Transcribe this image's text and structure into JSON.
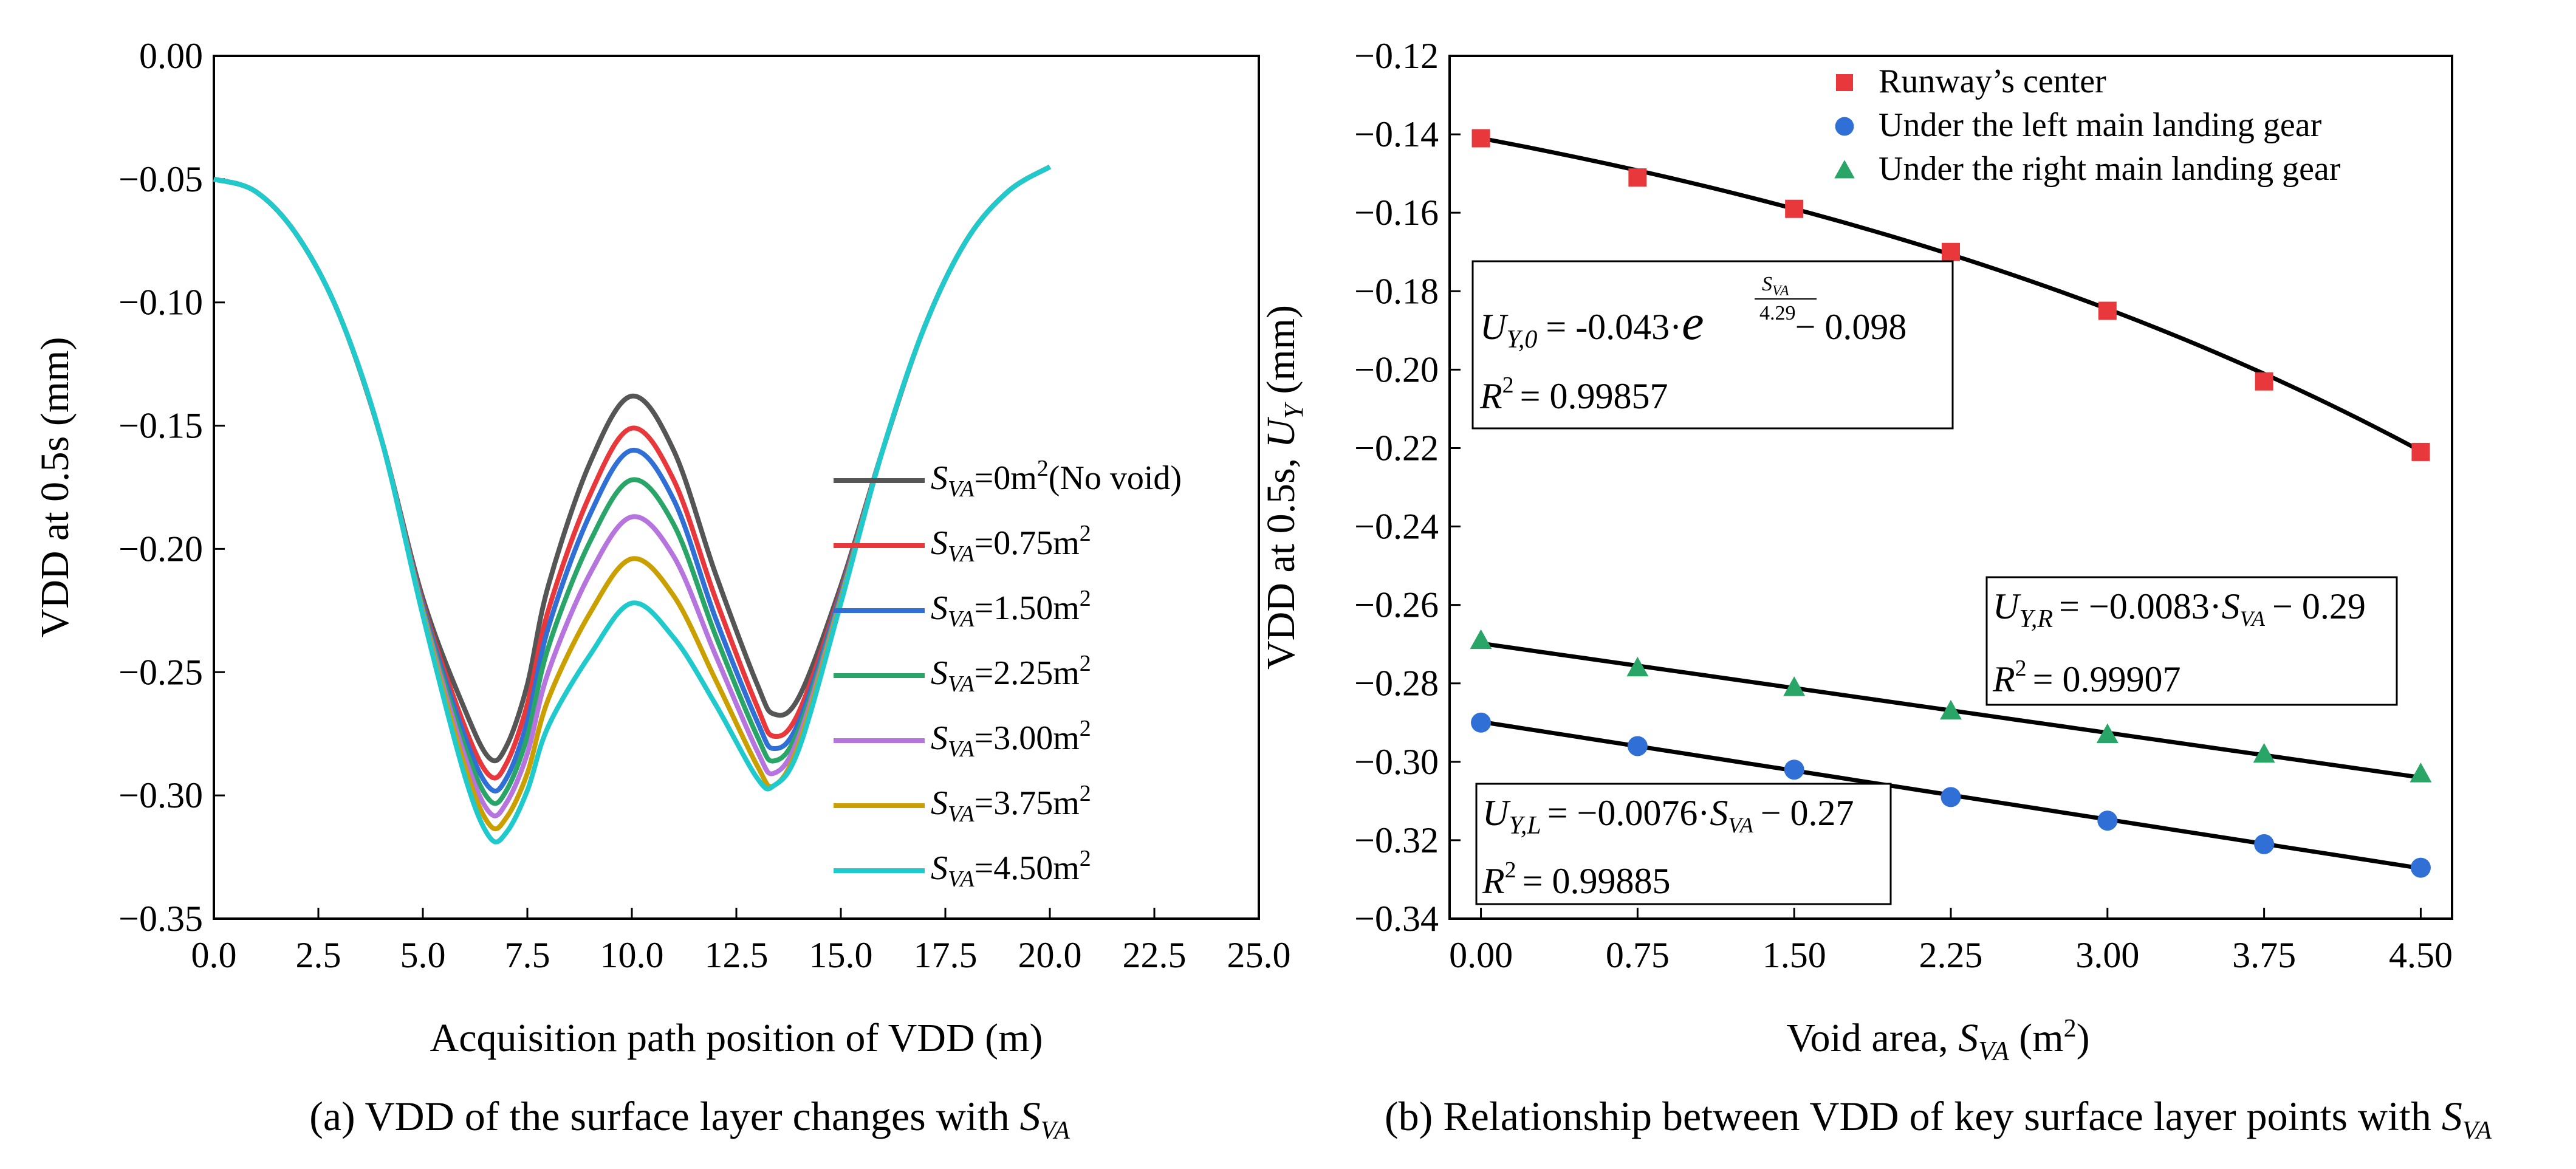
{
  "chart_data": [
    {
      "type": "line",
      "caption": "(a) VDD of the surface layer changes with S_VA",
      "xlabel": "Acquisition path position of VDD (m)",
      "ylabel": "VDD at 0.5s (mm)",
      "xlim": [
        0,
        25
      ],
      "ylim": [
        -0.35,
        0
      ],
      "xticks": [
        "0.0",
        "2.5",
        "5.0",
        "7.5",
        "10.0",
        "12.5",
        "15.0",
        "17.5",
        "20.0",
        "22.5",
        "25.0"
      ],
      "yticks": [
        "0.00",
        "−0.05",
        "−0.10",
        "−0.15",
        "−0.20",
        "−0.25",
        "−0.30",
        "−0.35"
      ],
      "x": [
        0,
        1,
        2,
        3,
        4,
        5,
        6,
        6.6,
        7,
        7.5,
        8,
        9,
        10,
        11,
        12,
        13,
        13.4,
        14,
        15,
        16,
        17,
        18,
        19,
        20
      ],
      "legend_position": "center-right",
      "series": [
        {
          "name_prefix": "S",
          "name_sub": "VA",
          "name_mid": "=0m",
          "name_sup": "2",
          "name_suffix": "(No void)",
          "color": "#555555",
          "values": [
            -0.05,
            -0.055,
            -0.073,
            -0.105,
            -0.155,
            -0.22,
            -0.265,
            -0.285,
            -0.28,
            -0.255,
            -0.215,
            -0.165,
            -0.138,
            -0.16,
            -0.21,
            -0.255,
            -0.267,
            -0.26,
            -0.215,
            -0.16,
            -0.11,
            -0.075,
            -0.055,
            -0.045
          ]
        },
        {
          "name_prefix": "S",
          "name_sub": "VA",
          "name_mid": "=0.75m",
          "name_sup": "2",
          "name_suffix": "",
          "color": "#e8383b",
          "values": [
            -0.05,
            -0.055,
            -0.073,
            -0.105,
            -0.155,
            -0.222,
            -0.272,
            -0.292,
            -0.287,
            -0.263,
            -0.225,
            -0.178,
            -0.151,
            -0.172,
            -0.22,
            -0.264,
            -0.276,
            -0.266,
            -0.217,
            -0.16,
            -0.11,
            -0.075,
            -0.055,
            -0.045
          ]
        },
        {
          "name_prefix": "S",
          "name_sub": "VA",
          "name_mid": "=1.50m",
          "name_sup": "2",
          "name_suffix": "",
          "color": "#2f6fd6",
          "values": [
            -0.05,
            -0.055,
            -0.073,
            -0.105,
            -0.155,
            -0.223,
            -0.276,
            -0.297,
            -0.293,
            -0.27,
            -0.232,
            -0.186,
            -0.16,
            -0.18,
            -0.228,
            -0.27,
            -0.281,
            -0.27,
            -0.218,
            -0.16,
            -0.11,
            -0.075,
            -0.055,
            -0.045
          ]
        },
        {
          "name_prefix": "S",
          "name_sub": "VA",
          "name_mid": "=2.25m",
          "name_sup": "2",
          "name_suffix": "",
          "color": "#2aa568",
          "values": [
            -0.05,
            -0.055,
            -0.073,
            -0.105,
            -0.155,
            -0.224,
            -0.28,
            -0.302,
            -0.298,
            -0.276,
            -0.24,
            -0.197,
            -0.172,
            -0.19,
            -0.235,
            -0.276,
            -0.286,
            -0.273,
            -0.219,
            -0.16,
            -0.11,
            -0.075,
            -0.055,
            -0.045
          ]
        },
        {
          "name_prefix": "S",
          "name_sub": "VA",
          "name_mid": "=3.00m",
          "name_sup": "2",
          "name_suffix": "",
          "color": "#b574de",
          "values": [
            -0.05,
            -0.055,
            -0.073,
            -0.105,
            -0.155,
            -0.225,
            -0.284,
            -0.307,
            -0.303,
            -0.283,
            -0.25,
            -0.21,
            -0.187,
            -0.203,
            -0.243,
            -0.282,
            -0.291,
            -0.276,
            -0.22,
            -0.16,
            -0.11,
            -0.075,
            -0.055,
            -0.045
          ]
        },
        {
          "name_prefix": "S",
          "name_sub": "VA",
          "name_mid": "=3.75m",
          "name_sup": "2",
          "name_suffix": "",
          "color": "#caa000",
          "values": [
            -0.05,
            -0.055,
            -0.073,
            -0.105,
            -0.155,
            -0.226,
            -0.288,
            -0.312,
            -0.309,
            -0.291,
            -0.261,
            -0.226,
            -0.204,
            -0.219,
            -0.253,
            -0.288,
            -0.296,
            -0.279,
            -0.221,
            -0.16,
            -0.11,
            -0.075,
            -0.055,
            -0.045
          ]
        },
        {
          "name_prefix": "S",
          "name_sub": "VA",
          "name_mid": "=4.50m",
          "name_sup": "2",
          "name_suffix": "",
          "color": "#1fc9cc",
          "values": [
            -0.05,
            -0.055,
            -0.073,
            -0.105,
            -0.155,
            -0.227,
            -0.292,
            -0.317,
            -0.315,
            -0.298,
            -0.272,
            -0.243,
            -0.222,
            -0.236,
            -0.263,
            -0.293,
            -0.296,
            -0.281,
            -0.222,
            -0.16,
            -0.11,
            -0.075,
            -0.055,
            -0.045
          ]
        }
      ]
    },
    {
      "type": "scatter",
      "caption": "(b) Relationship between VDD of key surface layer points with S_VA",
      "xlabel": "Void area, S_VA (m²)",
      "ylabel": "VDD at 0.5s, U_Y (mm)",
      "xlim": [
        -0.15,
        4.65
      ],
      "ylim": [
        -0.34,
        -0.12
      ],
      "xticks": [
        "0.00",
        "0.75",
        "1.50",
        "2.25",
        "3.00",
        "3.75",
        "4.50"
      ],
      "yticks": [
        "−0.12",
        "−0.14",
        "−0.16",
        "−0.18",
        "−0.20",
        "−0.22",
        "−0.24",
        "−0.26",
        "−0.28",
        "−0.30",
        "−0.32",
        "−0.34"
      ],
      "x": [
        0,
        0.75,
        1.5,
        2.25,
        3.0,
        3.75,
        4.5
      ],
      "legend_position": "top-right",
      "series": [
        {
          "name": "Runway’s center",
          "marker": "square",
          "color": "#e8383b",
          "values": [
            -0.141,
            -0.151,
            -0.159,
            -0.17,
            -0.185,
            -0.203,
            -0.221
          ]
        },
        {
          "name": "Under the left main landing gear",
          "marker": "circle",
          "color": "#2f6fd6",
          "values": [
            -0.29,
            -0.296,
            -0.302,
            -0.309,
            -0.315,
            -0.321,
            -0.327
          ]
        },
        {
          "name": "Under the right main landing gear",
          "marker": "triangle",
          "color": "#2aa568",
          "values": [
            -0.269,
            -0.276,
            -0.281,
            -0.287,
            -0.293,
            -0.298,
            -0.303
          ]
        }
      ],
      "fits": [
        {
          "series": "Runway’s center",
          "model": "-0.043*exp(S_VA/4.29)-0.098",
          "equation_a": "= -0.043·",
          "equation_b": "− 0.098",
          "exp_num": "S",
          "exp_num_sub": "VA",
          "exp_den": "4.29",
          "lhs": "U",
          "lhs_sub": "Y,0",
          "r2_label": "R",
          "r2_value": "= 0.99857"
        },
        {
          "series": "Under the right main landing gear",
          "model": "-0.0083*S_VA-0.29",
          "equation_a": "= −0.0083·",
          "equation_b": "− 0.29",
          "lhs": "U",
          "lhs_sub": "Y,R",
          "r2_label": "R",
          "r2_value": "= 0.99907"
        },
        {
          "series": "Under the left main landing gear",
          "model": "-0.0076*S_VA-0.27",
          "equation_a": "= −0.0076·",
          "equation_b": "− 0.27",
          "lhs": "U",
          "lhs_sub": "Y,L",
          "r2_label": "R",
          "r2_value": "= 0.99885"
        }
      ]
    }
  ]
}
